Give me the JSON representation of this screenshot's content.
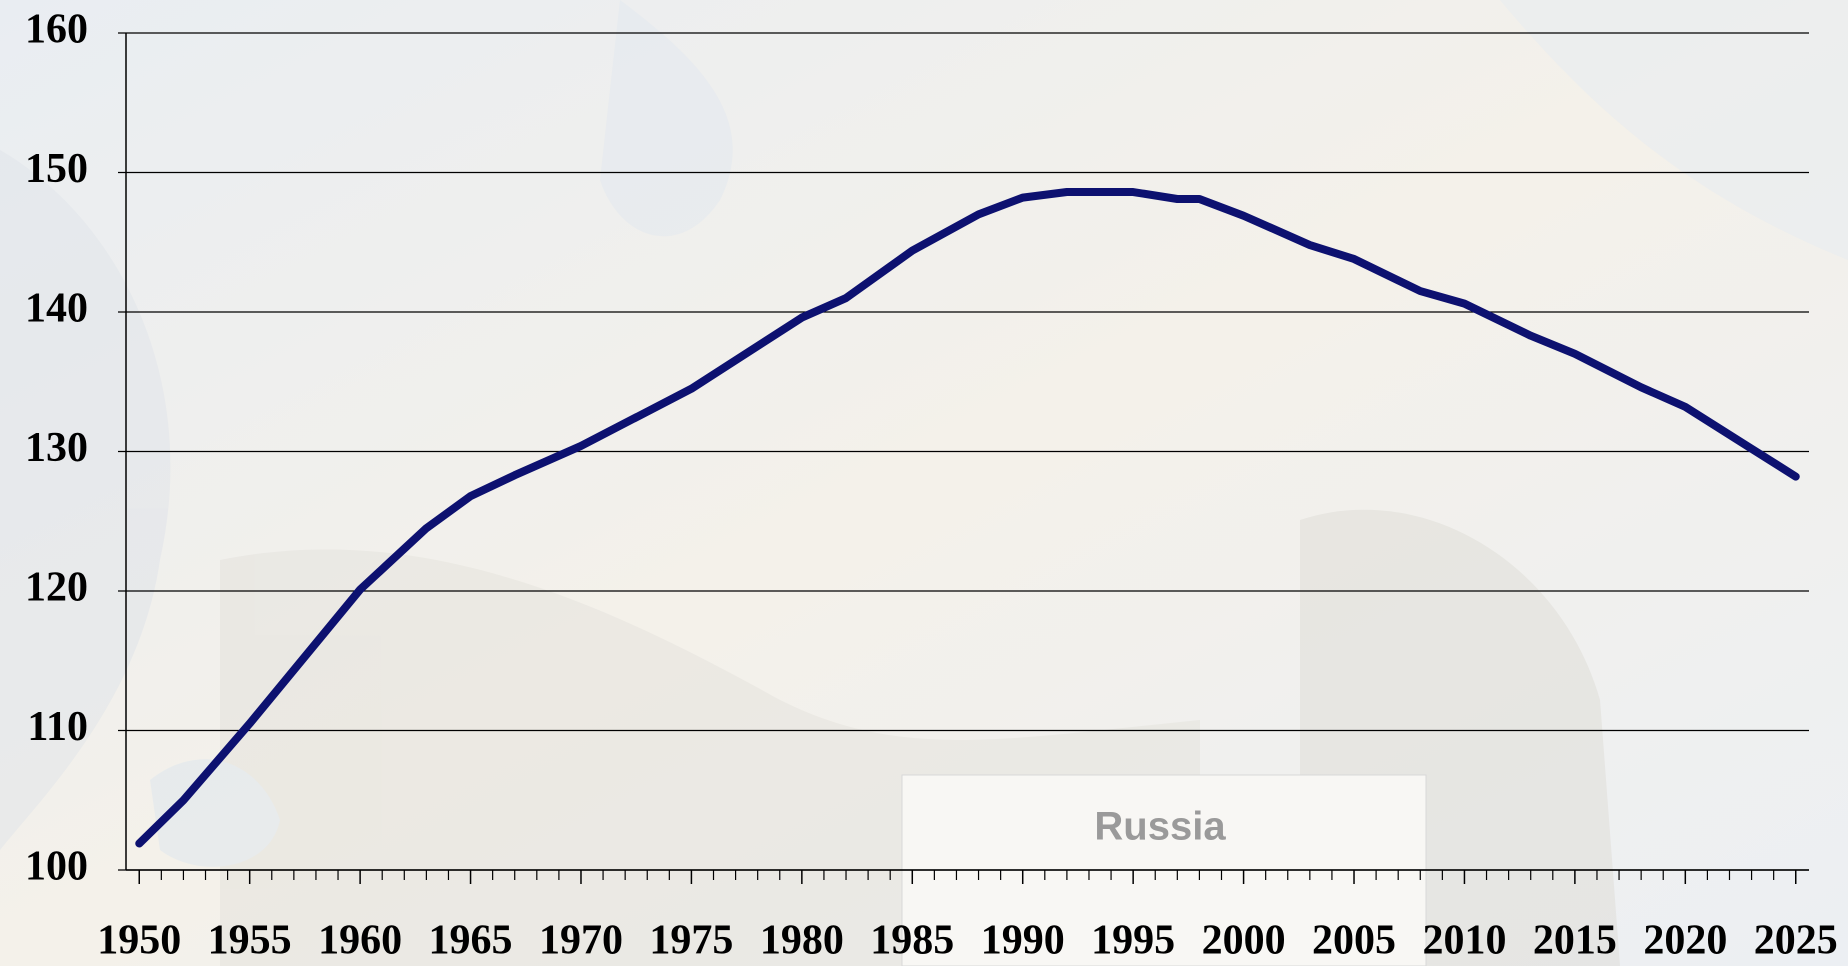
{
  "chart_data": {
    "type": "line",
    "annotation": "Russia",
    "x": [
      1950,
      1952,
      1955,
      1960,
      1963,
      1965,
      1967,
      1970,
      1975,
      1980,
      1982,
      1985,
      1988,
      1990,
      1992,
      1995,
      1997,
      1998,
      2000,
      2003,
      2005,
      2008,
      2010,
      2013,
      2015,
      2018,
      2020,
      2023,
      2025
    ],
    "series": [
      {
        "color": "#0d1170",
        "values": [
          101.9,
          105,
          110.5,
          120.1,
          124.5,
          126.8,
          128.3,
          130.4,
          134.5,
          139.6,
          141,
          144.4,
          147,
          148.2,
          148.6,
          148.6,
          148.1,
          148.1,
          146.9,
          144.8,
          143.8,
          141.5,
          140.6,
          138.3,
          137,
          134.6,
          133.2,
          130.2,
          128.2
        ]
      }
    ],
    "xlim": [
      1949.4,
      2025.6
    ],
    "xticks": [
      1950,
      1955,
      1960,
      1965,
      1970,
      1975,
      1980,
      1985,
      1990,
      1995,
      2000,
      2005,
      2010,
      2015,
      2020,
      2025
    ],
    "ylim": [
      100,
      160
    ],
    "yticks": [
      100,
      110,
      120,
      130,
      140,
      150,
      160
    ],
    "grid": true
  }
}
